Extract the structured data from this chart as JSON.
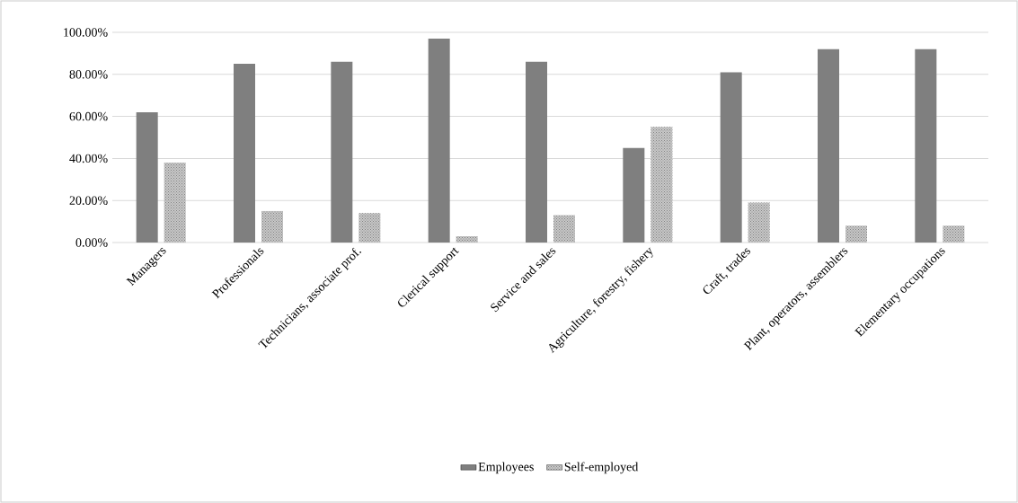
{
  "chart_data": {
    "type": "bar",
    "categories": [
      "Managers",
      "Professionals",
      "Technicians, associate prof.",
      "Clerical support",
      "Service and sales",
      "Agriculture, forestry, fishery",
      "Craft, trades",
      "Plant, operators, assemblers",
      "Elementary occupations"
    ],
    "series": [
      {
        "name": "Employees",
        "color": "#7f7f7f",
        "values": [
          62,
          85,
          86,
          97,
          86,
          45,
          81,
          92,
          92
        ]
      },
      {
        "name": "Self-employed",
        "color": "#c8c8c8",
        "values": [
          38,
          15,
          14,
          3,
          13,
          55,
          19,
          8,
          8
        ]
      }
    ],
    "ylim": [
      0,
      100
    ],
    "yticks": [
      {
        "value": 0,
        "label": "0.00%"
      },
      {
        "value": 20,
        "label": "20.00%"
      },
      {
        "value": 40,
        "label": "40.00%"
      },
      {
        "value": 60,
        "label": "60.00%"
      },
      {
        "value": 80,
        "label": "80.00%"
      },
      {
        "value": 100,
        "label": "100.00%"
      }
    ],
    "grid": "y",
    "legend": "bottom"
  }
}
